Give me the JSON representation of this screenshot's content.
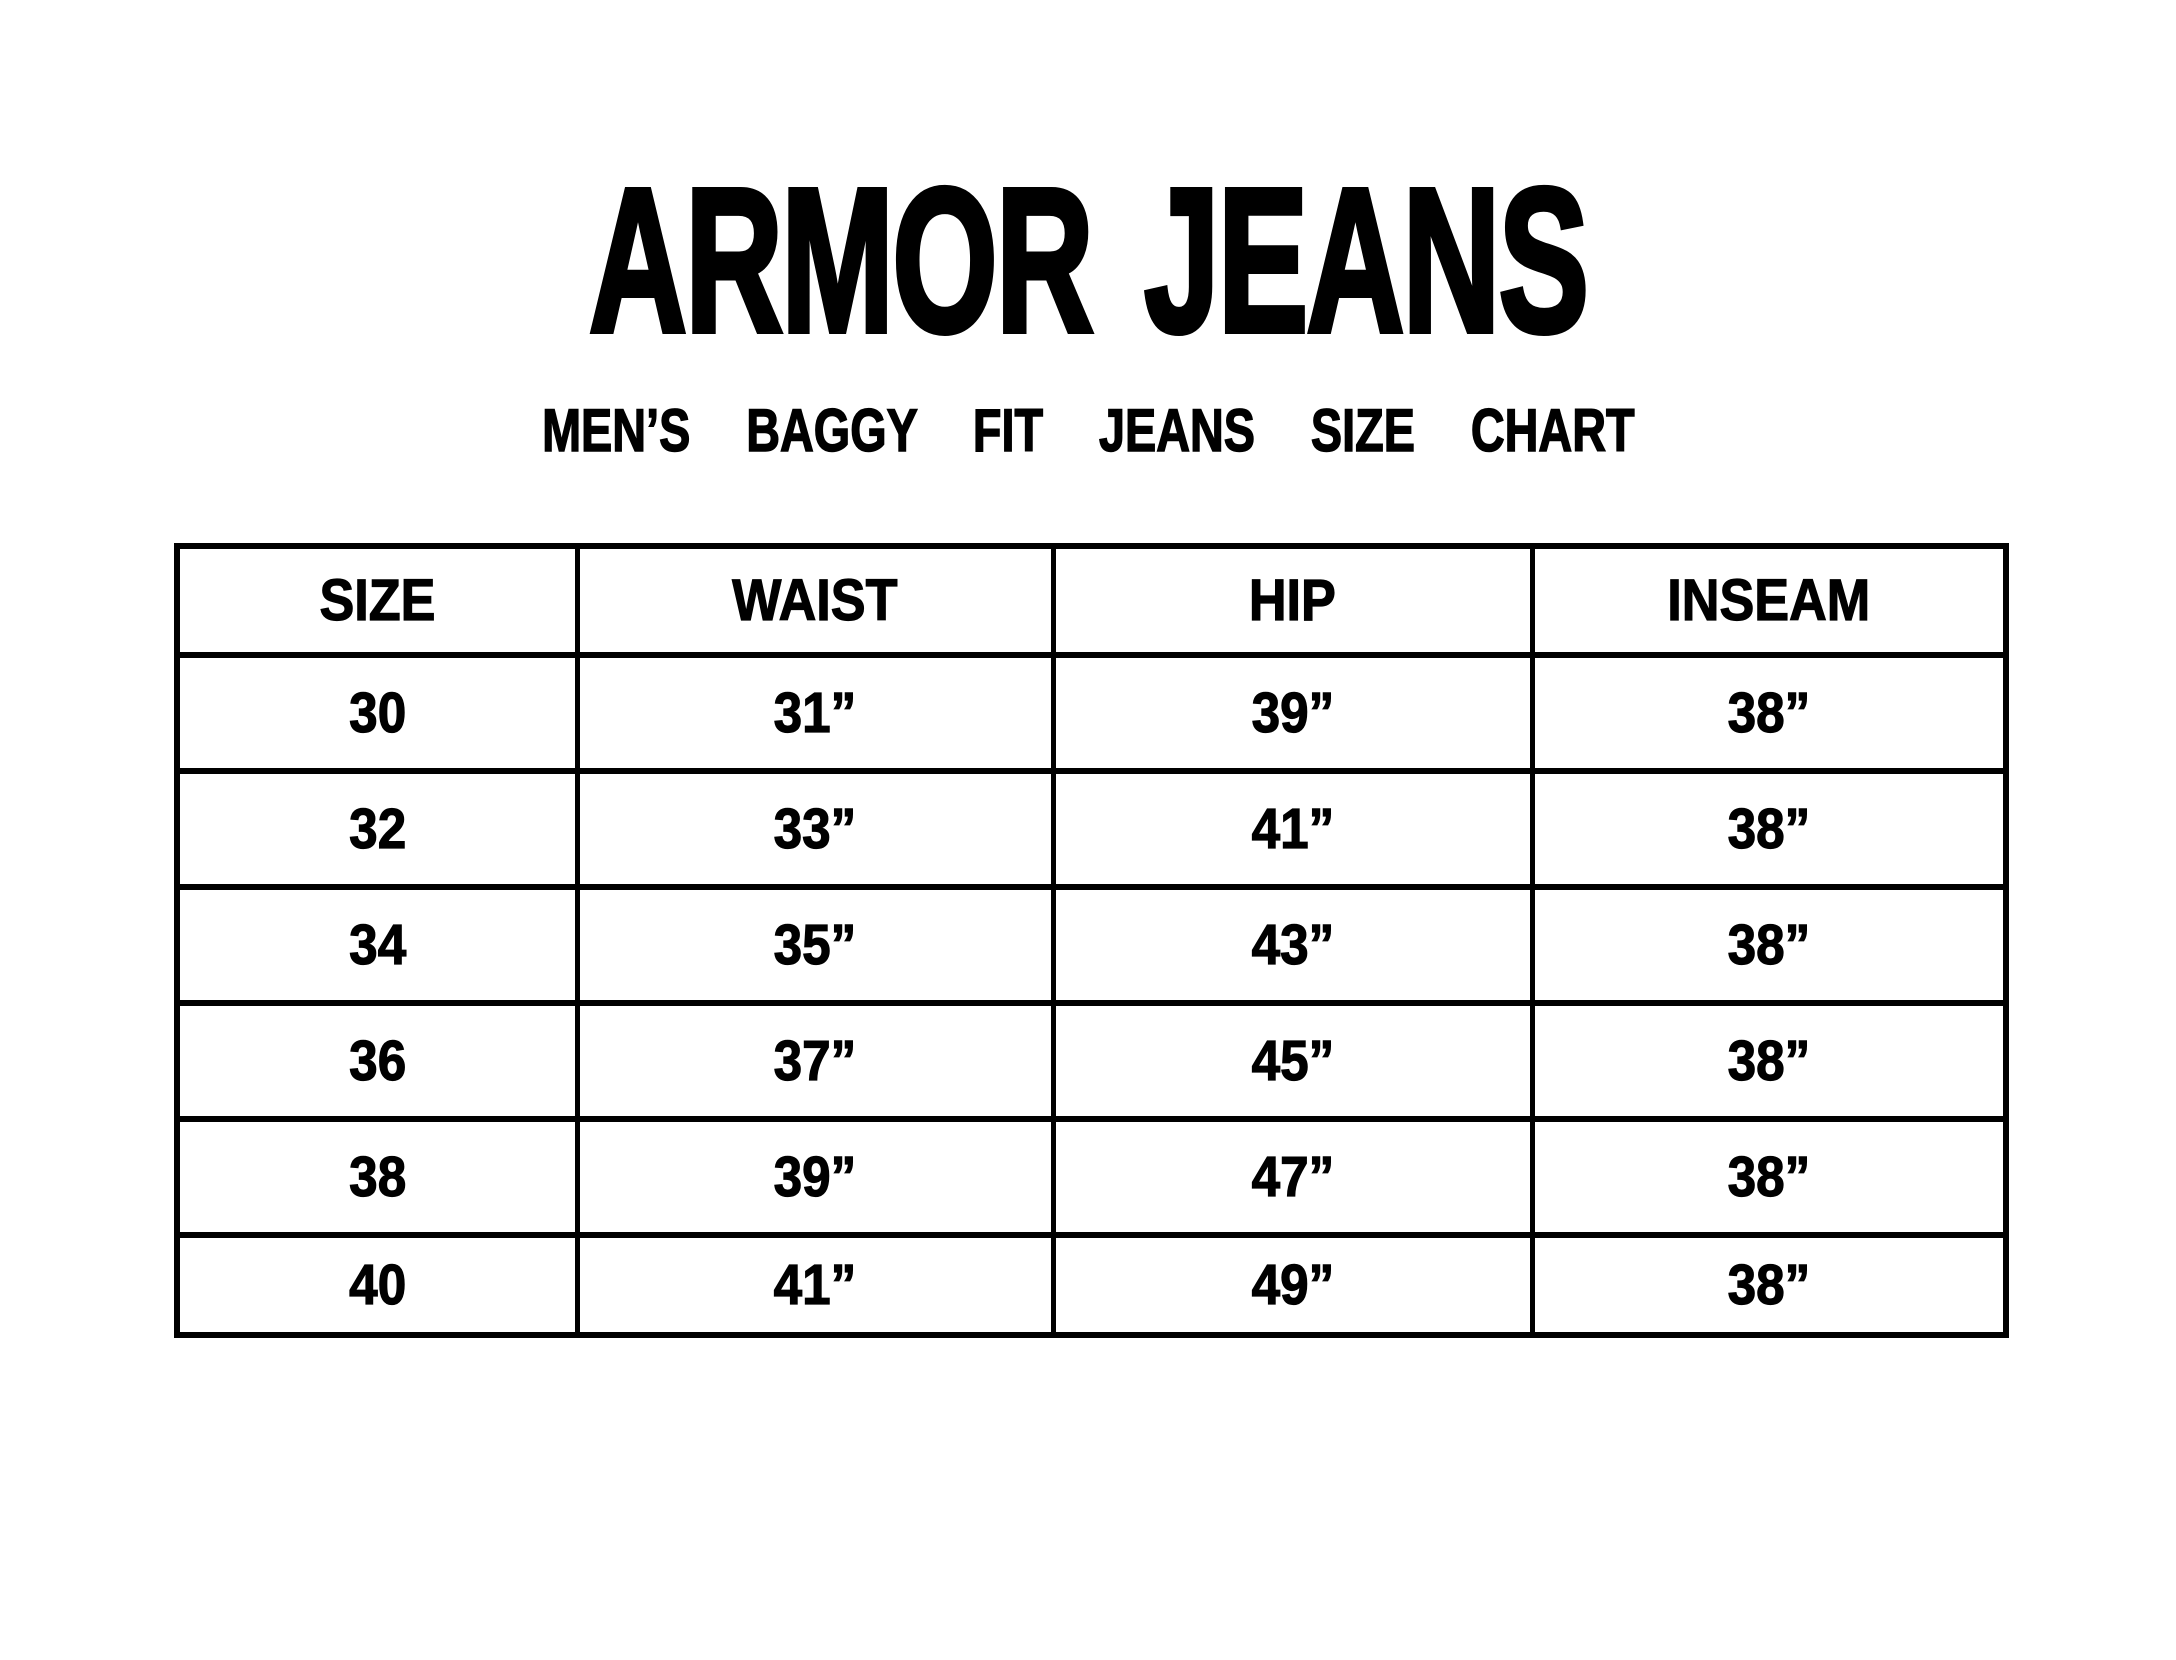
{
  "page": {
    "background_color": "#ffffff",
    "text_color": "#000000"
  },
  "header": {
    "brand": "ARMOR JEANS",
    "subtitle": "MEN’S BAGGY FIT JEANS SIZE CHART"
  },
  "table": {
    "columns": [
      "SIZE",
      "WAIST",
      "HIP",
      "INSEAM"
    ],
    "rows": [
      [
        "30",
        "31”",
        "39”",
        "38”"
      ],
      [
        "32",
        "33”",
        "41”",
        "38”"
      ],
      [
        "34",
        "35”",
        "43”",
        "38”"
      ],
      [
        "36",
        "37”",
        "45”",
        "38”"
      ],
      [
        "38",
        "39”",
        "47”",
        "38”"
      ],
      [
        "40",
        "41”",
        "49”",
        "38”"
      ]
    ]
  },
  "chart_data": {
    "type": "table",
    "title": "ARMOR JEANS",
    "subtitle": "MEN’S BAGGY FIT JEANS SIZE CHART",
    "columns": [
      "SIZE",
      "WAIST",
      "HIP",
      "INSEAM"
    ],
    "rows": [
      [
        "30",
        "31”",
        "39”",
        "38”"
      ],
      [
        "32",
        "33”",
        "41”",
        "38”"
      ],
      [
        "34",
        "35”",
        "43”",
        "38”"
      ],
      [
        "36",
        "37”",
        "45”",
        "38”"
      ],
      [
        "38",
        "39”",
        "47”",
        "38”"
      ],
      [
        "40",
        "41”",
        "49”",
        "38”"
      ]
    ]
  }
}
